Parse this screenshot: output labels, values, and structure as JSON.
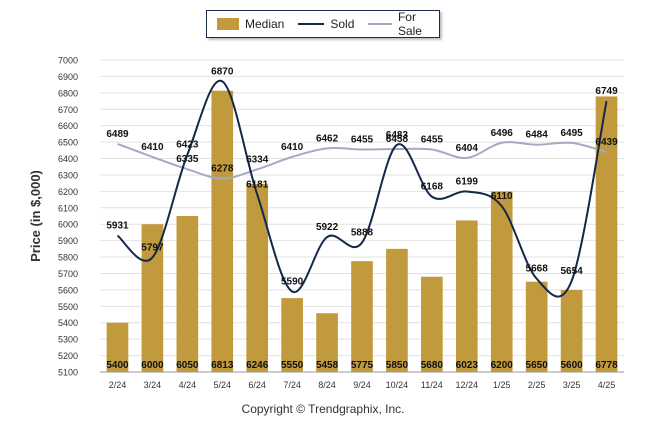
{
  "legend": {
    "median_label": "Median",
    "sold_label": "Sold",
    "forsale_label": "For Sale"
  },
  "copyright": "Copyright © Trendgraphix, Inc.",
  "chart_data": {
    "type": "bar",
    "categories": [
      "2/24",
      "3/24",
      "4/24",
      "5/24",
      "6/24",
      "7/24",
      "8/24",
      "9/24",
      "10/24",
      "11/24",
      "12/24",
      "1/25",
      "2/25",
      "3/25",
      "4/25"
    ],
    "ylabel": "Price (in $,000)",
    "ylim": [
      5100,
      7000
    ],
    "yticks": [
      5100,
      5200,
      5300,
      5400,
      5500,
      5600,
      5700,
      5800,
      5900,
      6000,
      6100,
      6200,
      6300,
      6400,
      6500,
      6600,
      6700,
      6800,
      6900,
      7000
    ],
    "grid": true,
    "legend_position": "top",
    "colors": {
      "median": "#c29a3e",
      "sold": "#14284b",
      "for_sale": "#a3abc4"
    },
    "series": [
      {
        "name": "Median",
        "type": "bar",
        "values": [
          5400,
          6000,
          6050,
          6813,
          6246,
          5550,
          5458,
          5775,
          5850,
          5680,
          6023,
          6200,
          5650,
          5600,
          6778
        ]
      },
      {
        "name": "Sold",
        "type": "line",
        "values": [
          5931,
          5797,
          6423,
          6870,
          6181,
          5590,
          5922,
          5888,
          6483,
          6168,
          6199,
          6110,
          5668,
          5654,
          6749
        ]
      },
      {
        "name": "For Sale",
        "type": "line",
        "values": [
          6489,
          6410,
          6335,
          6278,
          6334,
          6410,
          6462,
          6455,
          6458,
          6455,
          6404,
          6496,
          6484,
          6495,
          6439
        ]
      }
    ]
  }
}
